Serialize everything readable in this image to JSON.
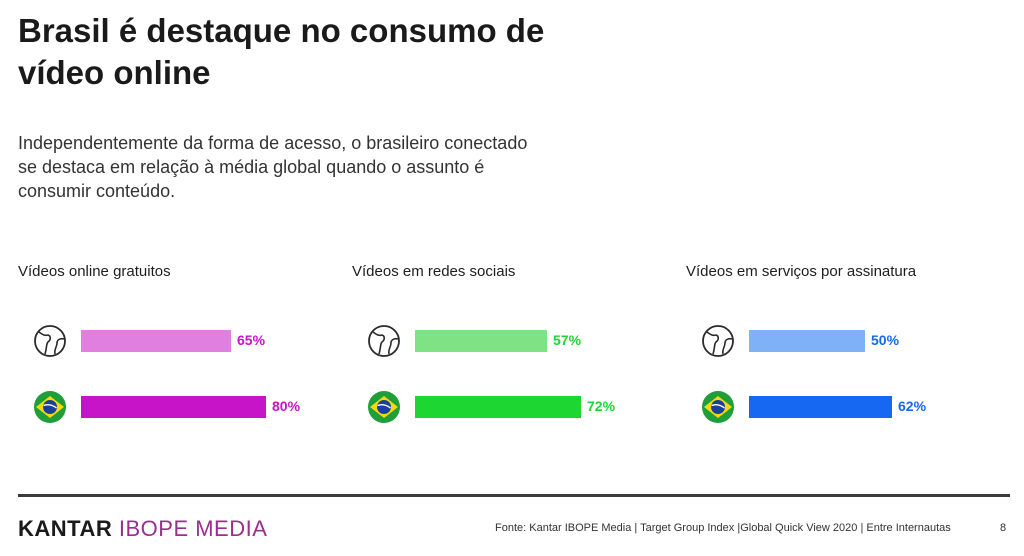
{
  "title": "Brasil é destaque no consumo de vídeo online",
  "subtitle": "Independentemente da forma de acesso, o brasileiro conectado se destaca em relação à média global quando o assunto é consumir conteúdo.",
  "chart_data": [
    {
      "type": "bar",
      "title": "Vídeos online gratuitos",
      "categories": [
        "global-icon",
        "brazil-flag-icon"
      ],
      "values": [
        65,
        80
      ],
      "labels": [
        "65%",
        "80%"
      ],
      "colors": [
        "#e07fe0",
        "#c714c9"
      ],
      "ylim": [
        0,
        100
      ]
    },
    {
      "type": "bar",
      "title": "Vídeos em redes sociais",
      "categories": [
        "global-icon",
        "brazil-flag-icon"
      ],
      "values": [
        57,
        72
      ],
      "labels": [
        "57%",
        "72%"
      ],
      "colors": [
        "#7fe385",
        "#1ed631"
      ],
      "ylim": [
        0,
        100
      ]
    },
    {
      "type": "bar",
      "title": "Vídeos em serviços por assinatura",
      "categories": [
        "global-icon",
        "brazil-flag-icon"
      ],
      "values": [
        50,
        62
      ],
      "labels": [
        "50%",
        "62%"
      ],
      "colors": [
        "#7fb1f7",
        "#1668f2"
      ],
      "ylim": [
        0,
        100
      ]
    }
  ],
  "footer": {
    "logo_kantar": "KANTAR",
    "logo_ibope": "IBOPE MEDIA",
    "source": "Fonte: Kantar IBOPE Media | Target Group Index |Global Quick View 2020 | Entre Internautas",
    "page_number": "8"
  }
}
